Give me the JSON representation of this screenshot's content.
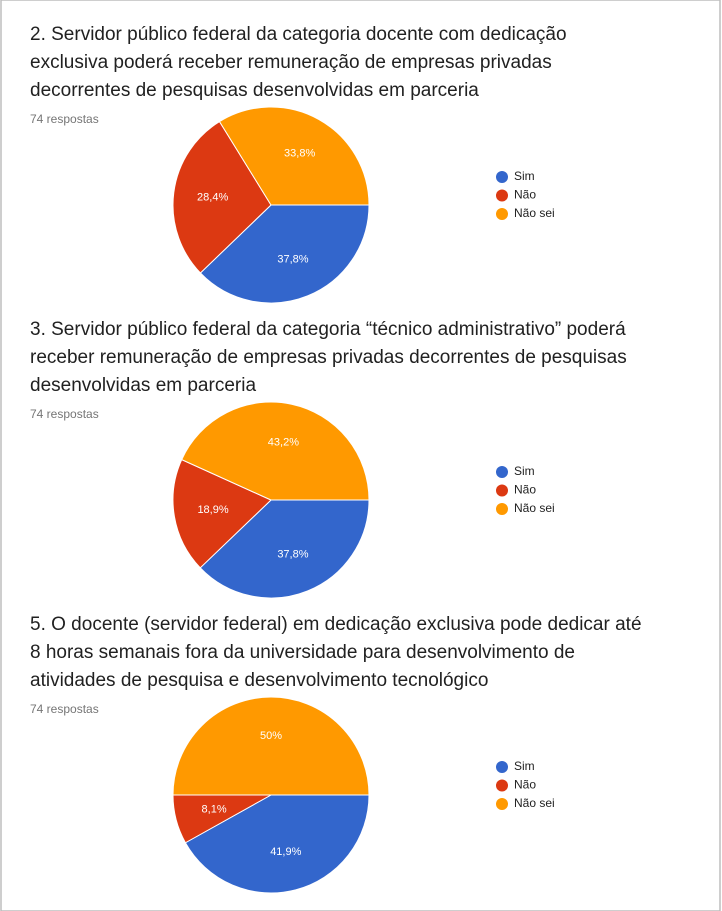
{
  "chart_data": [
    {
      "type": "pie",
      "title": [
        "2. Servidor público federal da categoria docente com dedicação",
        "exclusiva poderá receber remuneração de empresas privadas",
        "decorrentes de pesquisas desenvolvidas em parceria"
      ],
      "subtitle": "74 respostas",
      "categories": [
        "Sim",
        "Não",
        "Não sei"
      ],
      "values": [
        37.8,
        28.4,
        33.8
      ],
      "value_labels": [
        "37,8%",
        "28,4%",
        "33,8%"
      ],
      "colors": [
        "#3366cc",
        "#dc3912",
        "#ff9900"
      ]
    },
    {
      "type": "pie",
      "title": [
        "3. Servidor público federal da categoria “técnico administrativo” poderá",
        "receber remuneração de empresas privadas decorrentes de pesquisas",
        "desenvolvidas em parceria"
      ],
      "subtitle": "74 respostas",
      "categories": [
        "Sim",
        "Não",
        "Não sei"
      ],
      "values": [
        37.8,
        18.9,
        43.2
      ],
      "value_labels": [
        "37,8%",
        "18,9%",
        "43,2%"
      ],
      "colors": [
        "#3366cc",
        "#dc3912",
        "#ff9900"
      ]
    },
    {
      "type": "pie",
      "title": [
        "5. O docente (servidor federal) em dedicação exclusiva pode dedicar até",
        "8 horas semanais fora da universidade para desenvolvimento de",
        "atividades de pesquisa e desenvolvimento tecnológico"
      ],
      "subtitle": "74 respostas",
      "categories": [
        "Sim",
        "Não",
        "Não sei"
      ],
      "values": [
        41.9,
        8.1,
        50
      ],
      "value_labels": [
        "41,9%",
        "8,1%",
        "50%"
      ],
      "colors": [
        "#3366cc",
        "#dc3912",
        "#ff9900"
      ]
    }
  ]
}
